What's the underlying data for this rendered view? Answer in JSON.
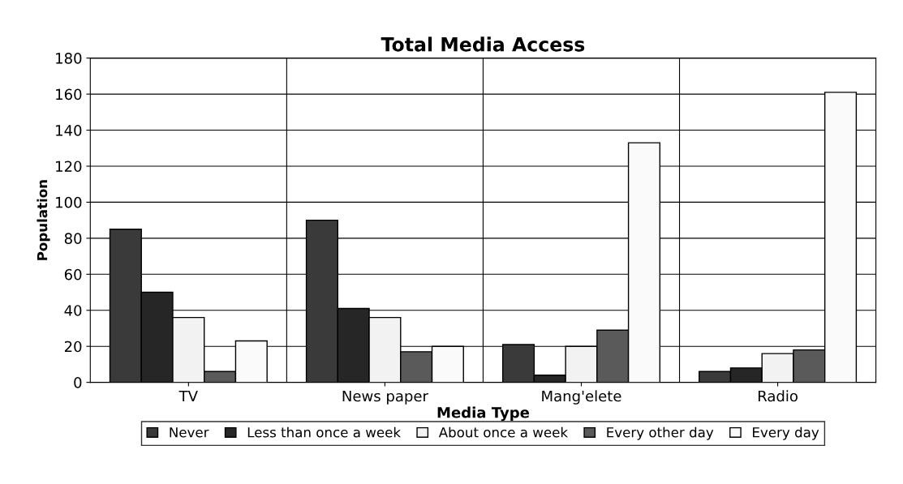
{
  "chart_data": {
    "type": "bar",
    "title": "Total Media Access",
    "xlabel": "Media Type",
    "ylabel": "Population",
    "categories": [
      "TV",
      "News paper",
      "Mang'elete",
      "Radio"
    ],
    "series": [
      {
        "name": "Never",
        "color": "#3a3a3a",
        "values": [
          85,
          90,
          21,
          6
        ]
      },
      {
        "name": "Less than once a week",
        "color": "#262626",
        "values": [
          50,
          41,
          4,
          8
        ]
      },
      {
        "name": "About once a week",
        "color": "#f2f2f2",
        "values": [
          36,
          36,
          20,
          16
        ]
      },
      {
        "name": "Every other day",
        "color": "#5a5a5a",
        "values": [
          6,
          17,
          29,
          18
        ]
      },
      {
        "name": "Every day",
        "color": "#fafafa",
        "values": [
          23,
          20,
          133,
          161
        ]
      }
    ],
    "ylim": [
      0,
      180
    ],
    "yticks": [
      0,
      20,
      40,
      60,
      80,
      100,
      120,
      140,
      160,
      180
    ],
    "grid": "y",
    "legend": "bottom"
  }
}
